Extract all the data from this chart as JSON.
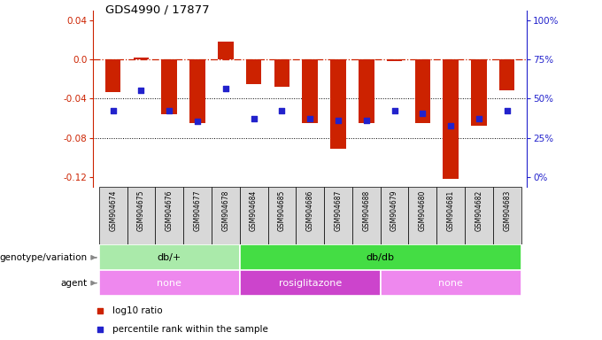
{
  "title": "GDS4990 / 17877",
  "samples": [
    "GSM904674",
    "GSM904675",
    "GSM904676",
    "GSM904677",
    "GSM904678",
    "GSM904684",
    "GSM904685",
    "GSM904686",
    "GSM904687",
    "GSM904688",
    "GSM904679",
    "GSM904680",
    "GSM904681",
    "GSM904682",
    "GSM904683"
  ],
  "log10_ratio": [
    -0.033,
    0.002,
    -0.056,
    -0.065,
    0.018,
    -0.025,
    -0.028,
    -0.065,
    -0.091,
    -0.065,
    -0.002,
    -0.065,
    -0.122,
    -0.068,
    -0.032
  ],
  "percentile_y": [
    -0.052,
    -0.032,
    -0.052,
    -0.063,
    -0.03,
    -0.06,
    -0.052,
    -0.06,
    -0.062,
    -0.062,
    -0.052,
    -0.055,
    -0.068,
    -0.06,
    -0.052
  ],
  "ylim": [
    -0.13,
    0.05
  ],
  "yticks_left": [
    0.04,
    0.0,
    -0.04,
    -0.08,
    -0.12
  ],
  "yticks_right_vals": [
    100,
    75,
    50,
    25,
    0
  ],
  "bar_color": "#cc2200",
  "dot_color": "#2222cc",
  "zeroline_color": "#cc2200",
  "genotype_groups": [
    {
      "label": "db/+",
      "start": 0,
      "end": 5,
      "color": "#aaeaaa"
    },
    {
      "label": "db/db",
      "start": 5,
      "end": 15,
      "color": "#44dd44"
    }
  ],
  "agent_groups": [
    {
      "label": "none",
      "start": 0,
      "end": 5,
      "color": "#ee88ee"
    },
    {
      "label": "rosiglitazone",
      "start": 5,
      "end": 10,
      "color": "#cc44cc"
    },
    {
      "label": "none",
      "start": 10,
      "end": 15,
      "color": "#ee88ee"
    }
  ],
  "legend_items": [
    {
      "label": "log10 ratio",
      "color": "#cc2200"
    },
    {
      "label": "percentile rank within the sample",
      "color": "#2222cc"
    }
  ],
  "fig_width": 6.8,
  "fig_height": 3.84,
  "dpi": 100
}
